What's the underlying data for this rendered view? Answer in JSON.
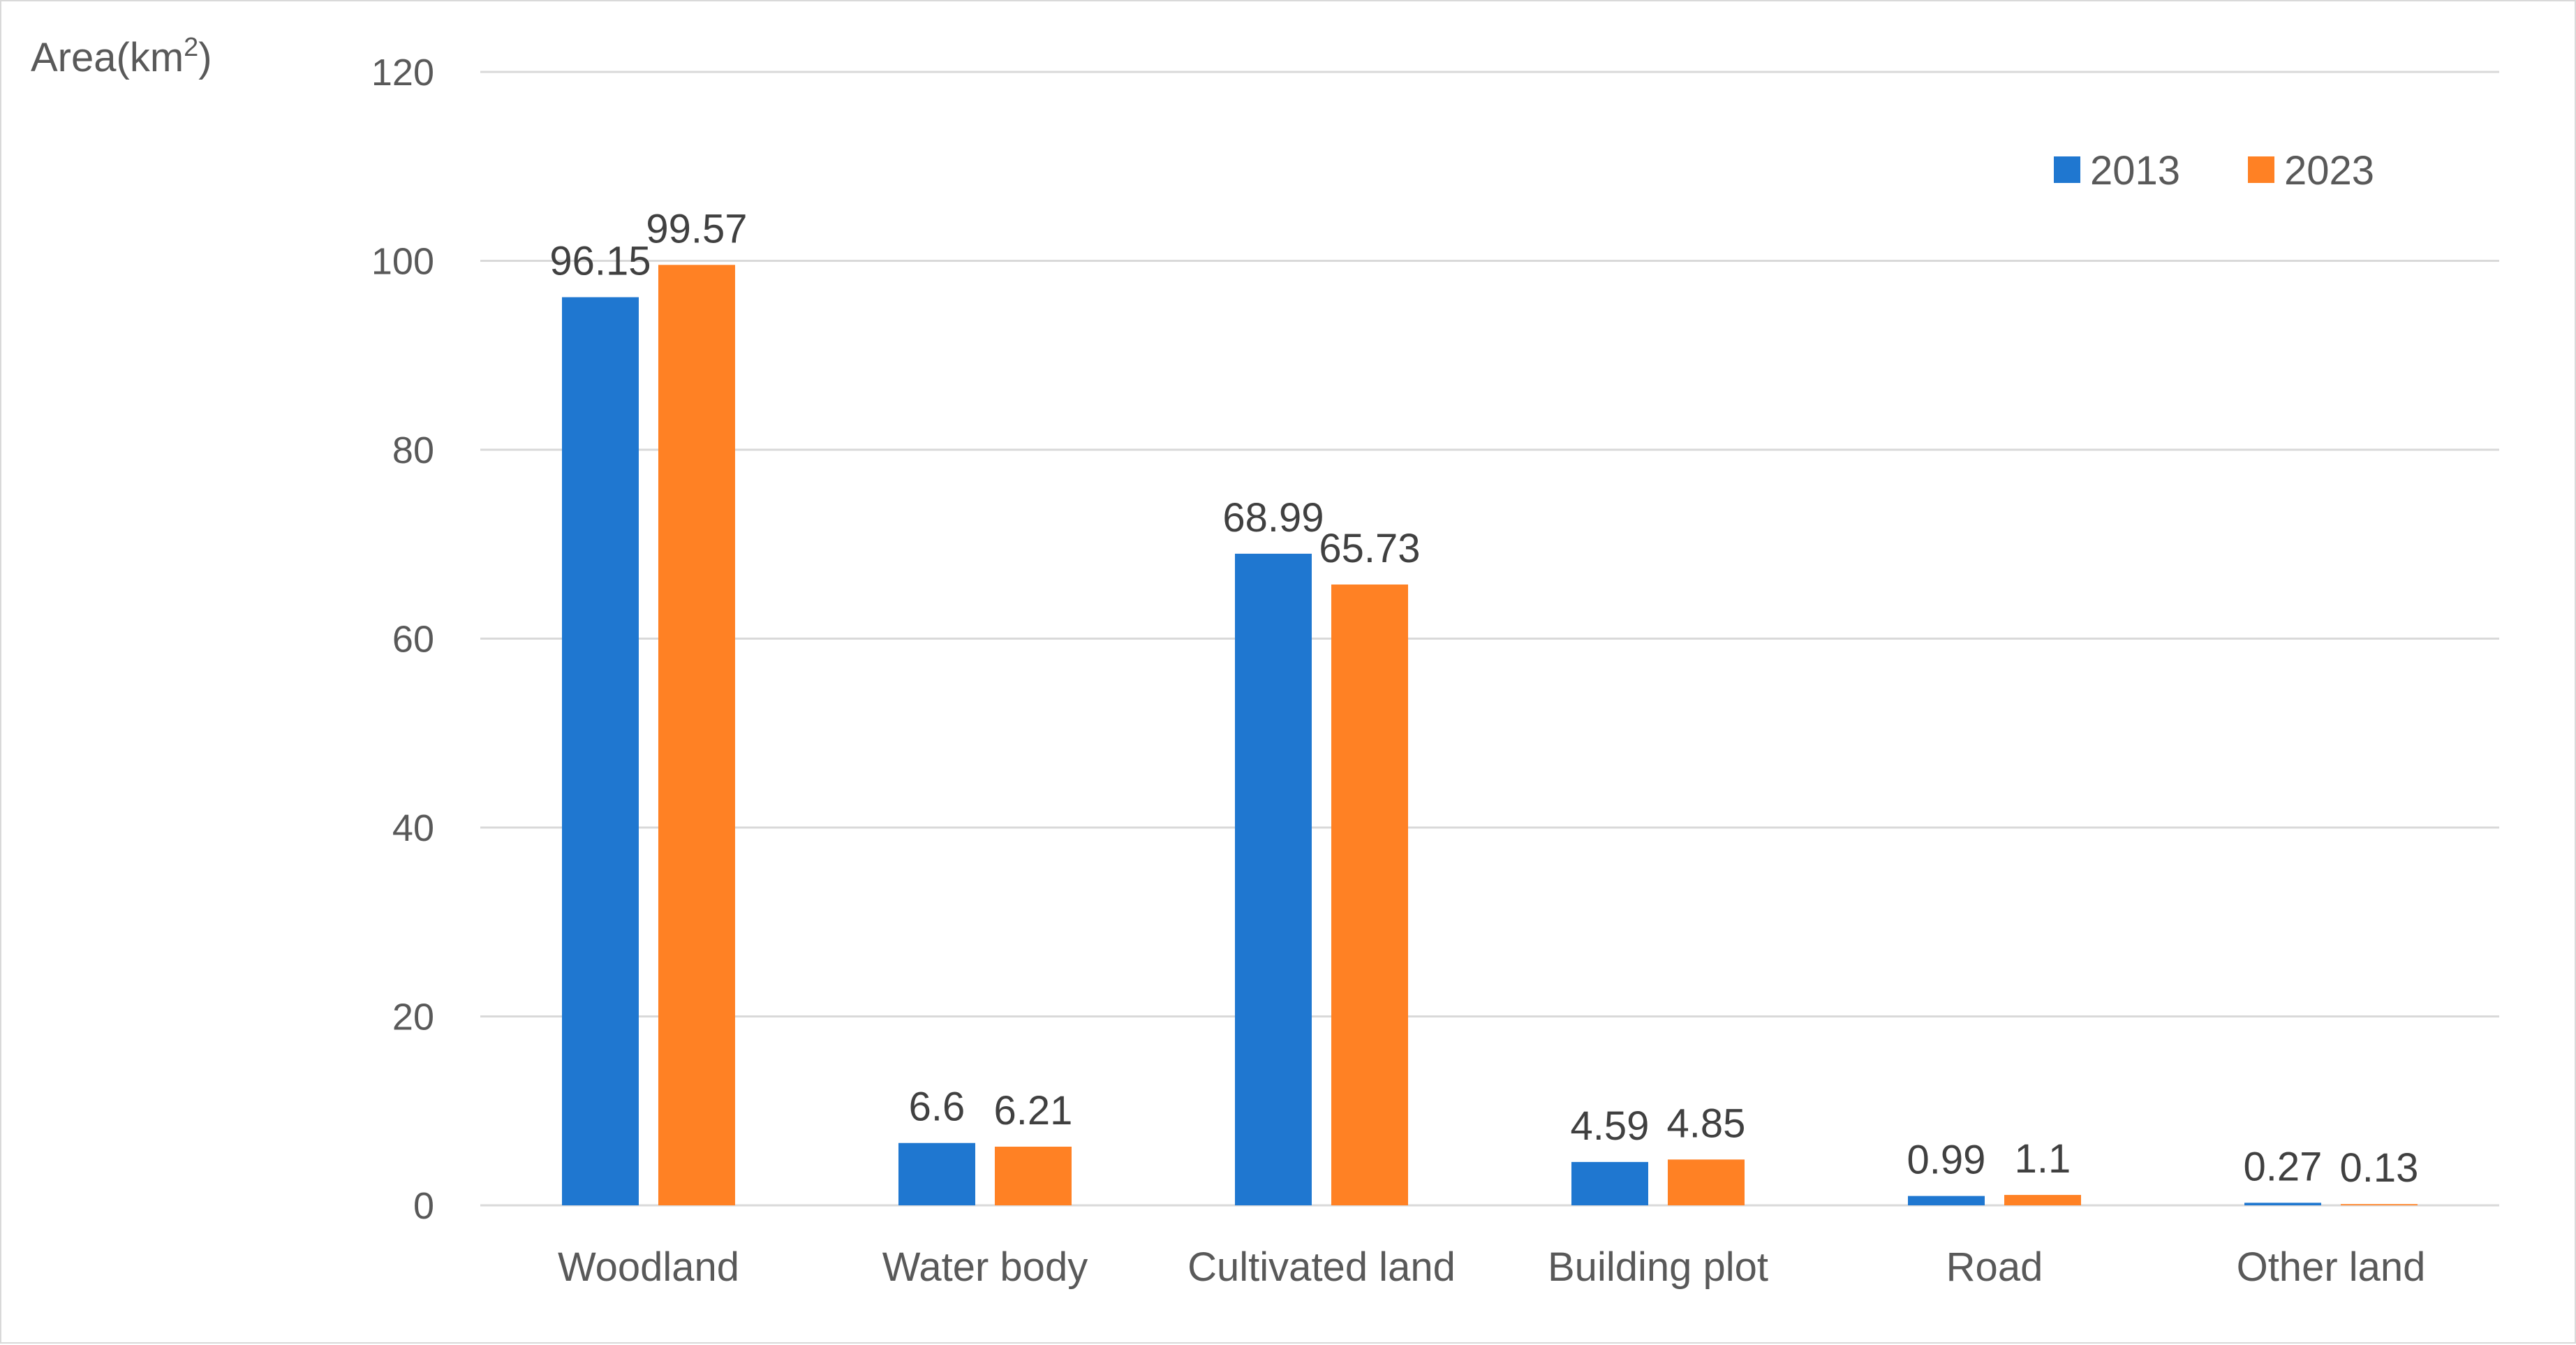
{
  "chart_data": {
    "type": "bar",
    "title": "",
    "xlabel": "",
    "ylabel": "Area(km",
    "ylabel_sup": "2",
    "ylabel_close": ")",
    "ylim": [
      0,
      120
    ],
    "yticks": [
      0,
      20,
      40,
      60,
      80,
      100,
      120
    ],
    "grid": true,
    "legend_position": "top-right",
    "categories": [
      "Woodland",
      "Water body",
      "Cultivated land",
      "Building plot",
      "Road",
      "Other land"
    ],
    "series": [
      {
        "name": "2013",
        "color": "#1f77d0",
        "values": [
          96.15,
          6.6,
          68.99,
          4.59,
          0.99,
          0.27
        ],
        "labels": [
          "96.15",
          "6.6",
          "68.99",
          "4.59",
          "0.99",
          "0.27"
        ]
      },
      {
        "name": "2023",
        "color": "#ff8124",
        "values": [
          99.57,
          6.21,
          65.73,
          4.85,
          1.1,
          0.13
        ],
        "labels": [
          "99.57",
          "6.21",
          "65.73",
          "4.85",
          "1.1",
          "0.13"
        ]
      }
    ]
  }
}
